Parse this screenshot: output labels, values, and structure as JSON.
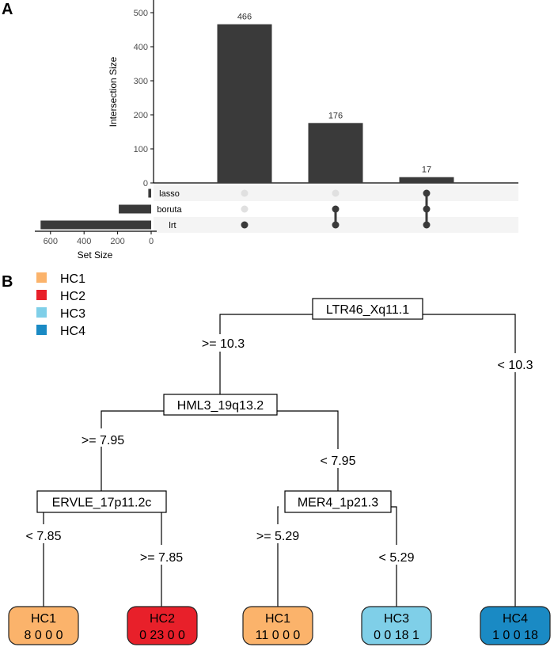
{
  "panels": {
    "a": {
      "label": "A"
    },
    "b": {
      "label": "B"
    }
  },
  "colors": {
    "bar": "#3a3a3a",
    "dot_active": "#3a3a3a",
    "dot_inactive": "#e0e0e0",
    "row_band": "#f4f4f4",
    "HC1": "#fbb36b",
    "HC2": "#e8202a",
    "HC3": "#7fcfe8",
    "HC4": "#1a8ac4"
  },
  "chart_data": [
    {
      "type": "bar",
      "subtype": "upset",
      "title": "",
      "ylabel": "Intersection Size",
      "ylim": [
        0,
        540
      ],
      "yticks": [
        0,
        100,
        200,
        300,
        400,
        500
      ],
      "sets": [
        "lasso",
        "boruta",
        "lrt"
      ],
      "set_sizes": {
        "lasso": 17,
        "boruta": 193,
        "lrt": 659
      },
      "set_size_xlabel": "Set Size",
      "set_size_ticks": [
        600,
        400,
        200,
        0
      ],
      "intersections": [
        {
          "members": [
            "lrt"
          ],
          "size": 466
        },
        {
          "members": [
            "boruta",
            "lrt"
          ],
          "size": 176
        },
        {
          "members": [
            "lasso",
            "boruta",
            "lrt"
          ],
          "size": 17
        }
      ]
    },
    {
      "type": "table",
      "subtype": "decision-tree",
      "legend": [
        "HC1",
        "HC2",
        "HC3",
        "HC4"
      ],
      "nodes": [
        {
          "id": "root",
          "label": "LTR46_Xq11.1"
        },
        {
          "id": "n2",
          "label": "HML3_19q13.2"
        },
        {
          "id": "n3",
          "label": "ERVLE_17p11.2c"
        },
        {
          "id": "n4",
          "label": "MER4_1p21.3"
        }
      ],
      "splits": [
        {
          "from": "root",
          "to": "n2",
          "label": ">= 10.3"
        },
        {
          "from": "root",
          "to": "leaf5",
          "label": "< 10.3"
        },
        {
          "from": "n2",
          "to": "n3",
          "label": ">= 7.95"
        },
        {
          "from": "n2",
          "to": "n4",
          "label": "< 7.95"
        },
        {
          "from": "n3",
          "to": "leaf1",
          "label": "< 7.85"
        },
        {
          "from": "n3",
          "to": "leaf2",
          "label": ">= 7.85"
        },
        {
          "from": "n4",
          "to": "leaf3",
          "label": ">= 5.29"
        },
        {
          "from": "n4",
          "to": "leaf4",
          "label": "< 5.29"
        }
      ],
      "leaves": [
        {
          "id": "leaf1",
          "class": "HC1",
          "counts": "8  0  0  0"
        },
        {
          "id": "leaf2",
          "class": "HC2",
          "counts": "0  23  0  0"
        },
        {
          "id": "leaf3",
          "class": "HC1",
          "counts": "11  0  0  0"
        },
        {
          "id": "leaf4",
          "class": "HC3",
          "counts": "0  0  18  1"
        },
        {
          "id": "leaf5",
          "class": "HC4",
          "counts": "1  0  0  18"
        }
      ]
    }
  ]
}
